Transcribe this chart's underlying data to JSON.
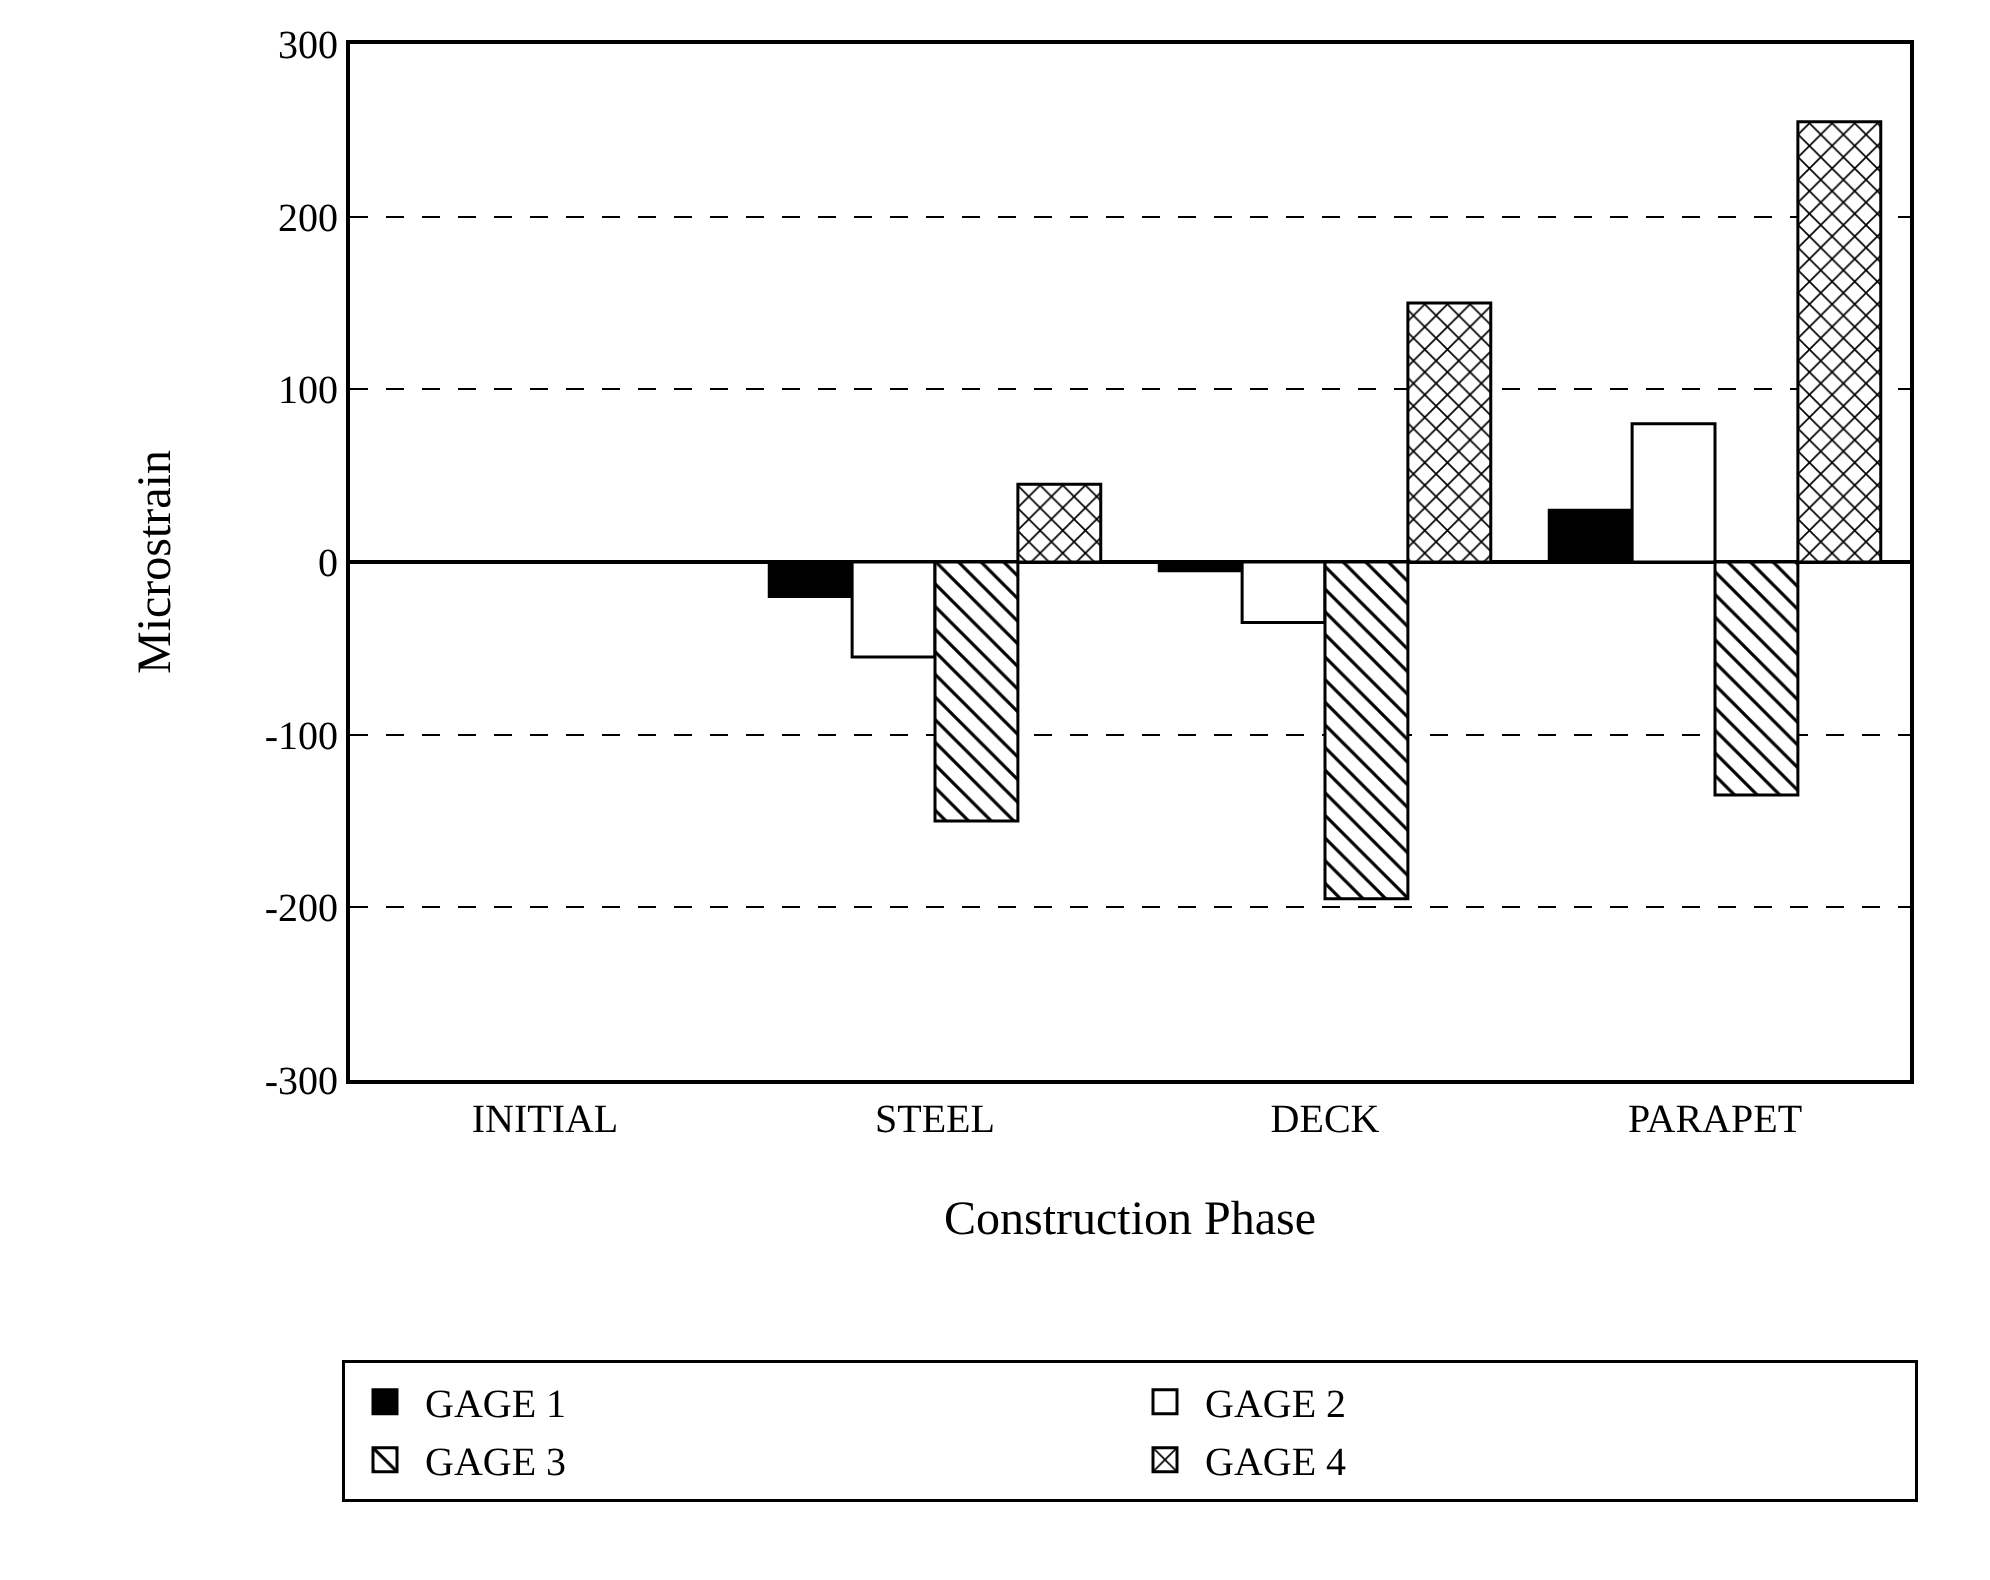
{
  "chart_data": {
    "type": "bar",
    "xlabel": "Construction Phase",
    "ylabel": "Microstrain",
    "categories": [
      "INITIAL",
      "STEEL",
      "DECK",
      "PARAPET"
    ],
    "series": [
      {
        "name": "GAGE 1",
        "color": "#000000",
        "values": [
          0,
          -20,
          -5,
          30
        ]
      },
      {
        "name": "GAGE 2",
        "color": "#ffffff",
        "values": [
          0,
          -55,
          -35,
          80
        ]
      },
      {
        "name": "GAGE 3",
        "color": "#000000",
        "values": [
          0,
          -150,
          -195,
          -135
        ]
      },
      {
        "name": "GAGE 4",
        "color": "#000000",
        "values": [
          0,
          45,
          150,
          255
        ]
      }
    ],
    "ylim": [
      -300,
      300
    ],
    "yticks": [
      -300,
      -200,
      -100,
      0,
      100,
      200,
      300
    ],
    "grid": "y",
    "legend": "bottom"
  }
}
